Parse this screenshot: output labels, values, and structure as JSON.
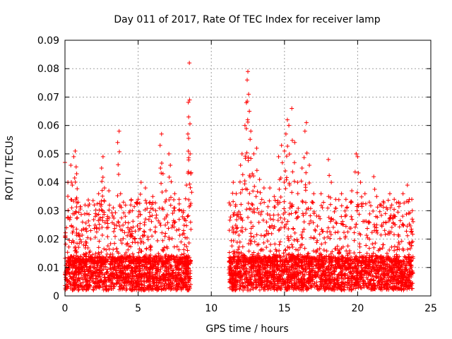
{
  "chart_data": {
    "type": "scatter",
    "title": "Day 011 of 2017, Rate Of TEC Index for receiver lamp",
    "xlabel": "GPS time / hours",
    "ylabel": "ROTI / TECUs",
    "xlim": [
      0,
      25
    ],
    "ylim": [
      0,
      0.09
    ],
    "xticks": [
      0,
      5,
      10,
      15,
      20,
      25
    ],
    "yticks": [
      0,
      0.01,
      0.02,
      0.03,
      0.04,
      0.05,
      0.06,
      0.07,
      0.08,
      0.09
    ],
    "grid": true,
    "marker": "+",
    "series": [
      {
        "name": "ROTI",
        "color": "#ff0000",
        "segments": [
          {
            "x_start": 0.0,
            "x_end": 8.6
          },
          {
            "x_start": 11.2,
            "x_end": 23.8
          }
        ],
        "points": [
          [
            0.0,
            0.047
          ],
          [
            0.1,
            0.024
          ],
          [
            0.2,
            0.04
          ],
          [
            0.4,
            0.046
          ],
          [
            0.5,
            0.039
          ],
          [
            0.6,
            0.049
          ],
          [
            0.7,
            0.051
          ],
          [
            0.75,
            0.034
          ],
          [
            0.8,
            0.043
          ],
          [
            0.9,
            0.033
          ],
          [
            1.0,
            0.021
          ],
          [
            1.2,
            0.026
          ],
          [
            1.5,
            0.029
          ],
          [
            2.0,
            0.032
          ],
          [
            2.3,
            0.036
          ],
          [
            2.5,
            0.045
          ],
          [
            2.6,
            0.049
          ],
          [
            2.7,
            0.038
          ],
          [
            3.0,
            0.037
          ],
          [
            3.3,
            0.031
          ],
          [
            3.6,
            0.054
          ],
          [
            3.7,
            0.058
          ],
          [
            3.8,
            0.036
          ],
          [
            4.0,
            0.033
          ],
          [
            4.3,
            0.024
          ],
          [
            4.6,
            0.03
          ],
          [
            5.0,
            0.034
          ],
          [
            5.2,
            0.04
          ],
          [
            5.5,
            0.038
          ],
          [
            5.8,
            0.033
          ],
          [
            6.0,
            0.035
          ],
          [
            6.2,
            0.03
          ],
          [
            6.5,
            0.053
          ],
          [
            6.6,
            0.057
          ],
          [
            6.7,
            0.043
          ],
          [
            6.9,
            0.037
          ],
          [
            7.1,
            0.05
          ],
          [
            7.2,
            0.046
          ],
          [
            7.5,
            0.036
          ],
          [
            7.8,
            0.034
          ],
          [
            8.1,
            0.03
          ],
          [
            8.3,
            0.039
          ],
          [
            8.4,
            0.057
          ],
          [
            8.45,
            0.063
          ],
          [
            8.5,
            0.082
          ],
          [
            8.52,
            0.069
          ],
          [
            8.55,
            0.05
          ],
          [
            8.6,
            0.043
          ],
          [
            11.3,
            0.032
          ],
          [
            11.5,
            0.04
          ],
          [
            11.7,
            0.036
          ],
          [
            12.0,
            0.046
          ],
          [
            12.1,
            0.05
          ],
          [
            12.3,
            0.06
          ],
          [
            12.4,
            0.068
          ],
          [
            12.45,
            0.076
          ],
          [
            12.5,
            0.079
          ],
          [
            12.55,
            0.071
          ],
          [
            12.6,
            0.065
          ],
          [
            12.7,
            0.058
          ],
          [
            12.8,
            0.043
          ],
          [
            12.9,
            0.05
          ],
          [
            13.1,
            0.052
          ],
          [
            13.3,
            0.041
          ],
          [
            13.6,
            0.038
          ],
          [
            14.0,
            0.038
          ],
          [
            14.3,
            0.035
          ],
          [
            14.6,
            0.049
          ],
          [
            14.8,
            0.053
          ],
          [
            15.0,
            0.051
          ],
          [
            15.1,
            0.057
          ],
          [
            15.2,
            0.062
          ],
          [
            15.3,
            0.06
          ],
          [
            15.5,
            0.066
          ],
          [
            15.7,
            0.054
          ],
          [
            15.9,
            0.04
          ],
          [
            16.2,
            0.045
          ],
          [
            16.4,
            0.058
          ],
          [
            16.5,
            0.061
          ],
          [
            16.7,
            0.046
          ],
          [
            17.0,
            0.036
          ],
          [
            17.5,
            0.036
          ],
          [
            18.0,
            0.048
          ],
          [
            18.2,
            0.04
          ],
          [
            18.5,
            0.034
          ],
          [
            18.9,
            0.036
          ],
          [
            19.2,
            0.034
          ],
          [
            19.6,
            0.037
          ],
          [
            19.9,
            0.05
          ],
          [
            20.0,
            0.049
          ],
          [
            20.2,
            0.04
          ],
          [
            20.5,
            0.036
          ],
          [
            20.8,
            0.033
          ],
          [
            21.1,
            0.042
          ],
          [
            21.3,
            0.035
          ],
          [
            21.6,
            0.032
          ],
          [
            21.9,
            0.029
          ],
          [
            22.2,
            0.036
          ],
          [
            22.5,
            0.034
          ],
          [
            22.8,
            0.033
          ],
          [
            23.1,
            0.036
          ],
          [
            23.4,
            0.039
          ],
          [
            23.7,
            0.034
          ]
        ],
        "baseline": {
          "min": 0.002,
          "typical_max": 0.014,
          "note": "dense band of values between about 0.002 and 0.015 TECU throughout both segments"
        }
      }
    ]
  }
}
